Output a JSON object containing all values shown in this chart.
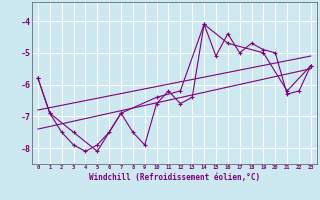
{
  "xlabel": "Windchill (Refroidissement éolien,°C)",
  "background_color": "#cce8f0",
  "grid_color": "#ffffff",
  "line_color": "#800080",
  "x_data": [
    0,
    1,
    2,
    3,
    4,
    5,
    6,
    7,
    8,
    9,
    10,
    11,
    12,
    13,
    14,
    15,
    16,
    17,
    18,
    19,
    20,
    21,
    22,
    23
  ],
  "series1": [
    -5.8,
    -6.9,
    -7.5,
    -7.9,
    -8.1,
    -7.9,
    -7.5,
    -6.9,
    -7.5,
    -7.9,
    -6.6,
    -6.2,
    -6.6,
    -6.4,
    -4.1,
    -5.1,
    -4.4,
    -5.0,
    -4.7,
    -4.9,
    -5.0,
    -6.3,
    -6.2,
    -5.4
  ],
  "series2_x": [
    0,
    1,
    3,
    5,
    7,
    10,
    12,
    14,
    16,
    19,
    21,
    23
  ],
  "series2_y": [
    -5.8,
    -6.9,
    -7.5,
    -8.1,
    -6.9,
    -6.4,
    -6.2,
    -4.1,
    -4.7,
    -5.0,
    -6.2,
    -5.4
  ],
  "trend1_x": [
    0,
    23
  ],
  "trend1_y": [
    -6.8,
    -5.1
  ],
  "trend2_x": [
    0,
    23
  ],
  "trend2_y": [
    -7.4,
    -5.5
  ],
  "xlim": [
    -0.5,
    23.5
  ],
  "ylim": [
    -8.5,
    -3.4
  ],
  "yticks": [
    -8,
    -7,
    -6,
    -5,
    -4
  ],
  "xticks": [
    0,
    1,
    2,
    3,
    4,
    5,
    6,
    7,
    8,
    9,
    10,
    11,
    12,
    13,
    14,
    15,
    16,
    17,
    18,
    19,
    20,
    21,
    22,
    23
  ]
}
